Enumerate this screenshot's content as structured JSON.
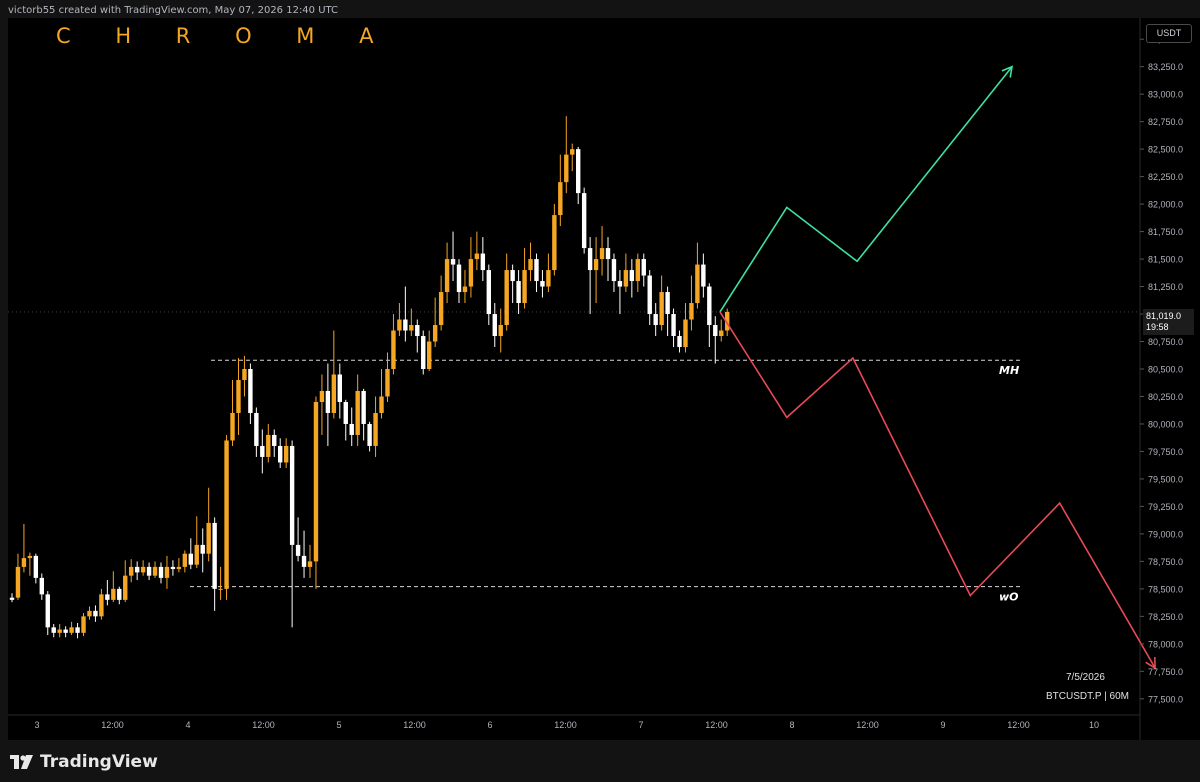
{
  "header": {
    "attribution": "victorb55 created with TradingView.com, May 07, 2026 12:40 UTC"
  },
  "brand": {
    "text": "C H R O M A"
  },
  "footer": {
    "logo_text": "TradingView"
  },
  "price_axis": {
    "currency": "USDT"
  },
  "last_price": {
    "value": "81,019.0",
    "countdown": "19:58"
  },
  "bottom_info": {
    "date": "7/5/2026",
    "symbol": "BTCUSDT.P | 60M"
  },
  "colors": {
    "bull": "#f5a623",
    "bear": "#ffffff",
    "up_path": "#3fe0a0",
    "down_path": "#e84a56",
    "background": "#000000"
  },
  "chart_data": {
    "type": "candlestick",
    "x_ticks": [
      "3",
      "12:00",
      "4",
      "12:00",
      "5",
      "12:00",
      "6",
      "12:00",
      "7",
      "12:00",
      "8",
      "12:00",
      "9",
      "12:00",
      "10"
    ],
    "y_ticks": [
      "83,500.0",
      "83,250.0",
      "83,000.0",
      "82,750.0",
      "82,500.0",
      "82,250.0",
      "82,000.0",
      "81,750.0",
      "81,500.0",
      "81,250.0",
      "81,000.0",
      "80,750.0",
      "80,500.0",
      "80,250.0",
      "80,000.0",
      "79,750.0",
      "79,500.0",
      "79,250.0",
      "79,000.0",
      "78,750.0",
      "78,500.0",
      "78,250.0",
      "78,000.0",
      "77,750.0",
      "77,500.0"
    ],
    "ylim": [
      77380,
      83620
    ],
    "candles": [
      {
        "o": 78420,
        "c": 78400,
        "h": 78460,
        "l": 78380
      },
      {
        "o": 78420,
        "c": 78700,
        "h": 78820,
        "l": 78400
      },
      {
        "o": 78700,
        "c": 78780,
        "h": 79090,
        "l": 78650
      },
      {
        "o": 78780,
        "c": 78800,
        "h": 78830,
        "l": 78620
      },
      {
        "o": 78800,
        "c": 78600,
        "h": 78820,
        "l": 78550
      },
      {
        "o": 78600,
        "c": 78450,
        "h": 78640,
        "l": 78400
      },
      {
        "o": 78450,
        "c": 78150,
        "h": 78480,
        "l": 78080
      },
      {
        "o": 78150,
        "c": 78100,
        "h": 78180,
        "l": 78060
      },
      {
        "o": 78100,
        "c": 78130,
        "h": 78180,
        "l": 78060
      },
      {
        "o": 78130,
        "c": 78100,
        "h": 78160,
        "l": 78060
      },
      {
        "o": 78100,
        "c": 78150,
        "h": 78200,
        "l": 78080
      },
      {
        "o": 78150,
        "c": 78100,
        "h": 78190,
        "l": 78050
      },
      {
        "o": 78100,
        "c": 78250,
        "h": 78280,
        "l": 78070
      },
      {
        "o": 78250,
        "c": 78300,
        "h": 78340,
        "l": 78220
      },
      {
        "o": 78300,
        "c": 78250,
        "h": 78350,
        "l": 78200
      },
      {
        "o": 78250,
        "c": 78450,
        "h": 78500,
        "l": 78220
      },
      {
        "o": 78450,
        "c": 78400,
        "h": 78580,
        "l": 78350
      },
      {
        "o": 78400,
        "c": 78500,
        "h": 78660,
        "l": 78380
      },
      {
        "o": 78500,
        "c": 78400,
        "h": 78520,
        "l": 78360
      },
      {
        "o": 78400,
        "c": 78620,
        "h": 78760,
        "l": 78380
      },
      {
        "o": 78620,
        "c": 78700,
        "h": 78770,
        "l": 78560
      },
      {
        "o": 78700,
        "c": 78650,
        "h": 78750,
        "l": 78580
      },
      {
        "o": 78650,
        "c": 78700,
        "h": 78760,
        "l": 78620
      },
      {
        "o": 78700,
        "c": 78620,
        "h": 78740,
        "l": 78580
      },
      {
        "o": 78620,
        "c": 78700,
        "h": 78750,
        "l": 78600
      },
      {
        "o": 78700,
        "c": 78600,
        "h": 78740,
        "l": 78550
      },
      {
        "o": 78600,
        "c": 78700,
        "h": 78800,
        "l": 78500
      },
      {
        "o": 78700,
        "c": 78680,
        "h": 78760,
        "l": 78620
      },
      {
        "o": 78680,
        "c": 78700,
        "h": 78780,
        "l": 78650
      },
      {
        "o": 78700,
        "c": 78820,
        "h": 78850,
        "l": 78650
      },
      {
        "o": 78820,
        "c": 78720,
        "h": 78960,
        "l": 78680
      },
      {
        "o": 78720,
        "c": 78900,
        "h": 79160,
        "l": 78690
      },
      {
        "o": 78900,
        "c": 78820,
        "h": 79050,
        "l": 78650
      },
      {
        "o": 78820,
        "c": 79100,
        "h": 79420,
        "l": 78750
      },
      {
        "o": 79100,
        "c": 78500,
        "h": 79150,
        "l": 78300
      },
      {
        "o": 78500,
        "c": 78500,
        "h": 78700,
        "l": 78400
      },
      {
        "o": 78500,
        "c": 79850,
        "h": 79900,
        "l": 78400
      },
      {
        "o": 79850,
        "c": 80100,
        "h": 80400,
        "l": 79800
      },
      {
        "o": 80100,
        "c": 80400,
        "h": 80600,
        "l": 79900
      },
      {
        "o": 80400,
        "c": 80500,
        "h": 80620,
        "l": 80250
      },
      {
        "o": 80500,
        "c": 80100,
        "h": 80550,
        "l": 80000
      },
      {
        "o": 80100,
        "c": 79800,
        "h": 80150,
        "l": 79700
      },
      {
        "o": 79800,
        "c": 79700,
        "h": 79950,
        "l": 79550
      },
      {
        "o": 79700,
        "c": 79900,
        "h": 80000,
        "l": 79650
      },
      {
        "o": 79900,
        "c": 79800,
        "h": 79950,
        "l": 79700
      },
      {
        "o": 79800,
        "c": 79650,
        "h": 79870,
        "l": 79600
      },
      {
        "o": 79650,
        "c": 79800,
        "h": 79870,
        "l": 79600
      },
      {
        "o": 79800,
        "c": 78900,
        "h": 79850,
        "l": 78150
      },
      {
        "o": 78900,
        "c": 78800,
        "h": 79150,
        "l": 78750
      },
      {
        "o": 78800,
        "c": 78700,
        "h": 79030,
        "l": 78600
      },
      {
        "o": 78700,
        "c": 78750,
        "h": 78900,
        "l": 78600
      },
      {
        "o": 78750,
        "c": 80200,
        "h": 80250,
        "l": 78500
      },
      {
        "o": 80200,
        "c": 80300,
        "h": 80450,
        "l": 79900
      },
      {
        "o": 80300,
        "c": 80100,
        "h": 80550,
        "l": 79800
      },
      {
        "o": 80100,
        "c": 80450,
        "h": 80850,
        "l": 80050
      },
      {
        "o": 80450,
        "c": 80200,
        "h": 80550,
        "l": 80050
      },
      {
        "o": 80200,
        "c": 80000,
        "h": 80220,
        "l": 79850
      },
      {
        "o": 80000,
        "c": 79900,
        "h": 80150,
        "l": 79800
      },
      {
        "o": 79900,
        "c": 80300,
        "h": 80450,
        "l": 79800
      },
      {
        "o": 80300,
        "c": 80000,
        "h": 80320,
        "l": 79850
      },
      {
        "o": 80000,
        "c": 79800,
        "h": 80020,
        "l": 79750
      },
      {
        "o": 79800,
        "c": 80100,
        "h": 80250,
        "l": 79700
      },
      {
        "o": 80100,
        "c": 80250,
        "h": 80500,
        "l": 80050
      },
      {
        "o": 80250,
        "c": 80500,
        "h": 80650,
        "l": 80200
      },
      {
        "o": 80500,
        "c": 80850,
        "h": 81000,
        "l": 80450
      },
      {
        "o": 80850,
        "c": 80950,
        "h": 81100,
        "l": 80800
      },
      {
        "o": 80950,
        "c": 80850,
        "h": 81250,
        "l": 80750
      },
      {
        "o": 80850,
        "c": 80900,
        "h": 81050,
        "l": 80800
      },
      {
        "o": 80900,
        "c": 80800,
        "h": 80950,
        "l": 80650
      },
      {
        "o": 80800,
        "c": 80500,
        "h": 80850,
        "l": 80450
      },
      {
        "o": 80500,
        "c": 80750,
        "h": 80850,
        "l": 80480
      },
      {
        "o": 80750,
        "c": 80900,
        "h": 81150,
        "l": 80700
      },
      {
        "o": 80900,
        "c": 81200,
        "h": 81350,
        "l": 80850
      },
      {
        "o": 81200,
        "c": 81500,
        "h": 81650,
        "l": 81100
      },
      {
        "o": 81500,
        "c": 81450,
        "h": 81750,
        "l": 81300
      },
      {
        "o": 81450,
        "c": 81200,
        "h": 81500,
        "l": 81100
      },
      {
        "o": 81200,
        "c": 81250,
        "h": 81400,
        "l": 81100
      },
      {
        "o": 81250,
        "c": 81500,
        "h": 81700,
        "l": 81150
      },
      {
        "o": 81500,
        "c": 81550,
        "h": 81750,
        "l": 81400
      },
      {
        "o": 81550,
        "c": 81400,
        "h": 81700,
        "l": 81300
      },
      {
        "o": 81400,
        "c": 81000,
        "h": 81450,
        "l": 80900
      },
      {
        "o": 81000,
        "c": 80800,
        "h": 81100,
        "l": 80700
      },
      {
        "o": 80800,
        "c": 80900,
        "h": 81050,
        "l": 80650
      },
      {
        "o": 80900,
        "c": 81400,
        "h": 81550,
        "l": 80850
      },
      {
        "o": 81400,
        "c": 81300,
        "h": 81450,
        "l": 81100
      },
      {
        "o": 81300,
        "c": 81100,
        "h": 81400,
        "l": 81000
      },
      {
        "o": 81100,
        "c": 81400,
        "h": 81600,
        "l": 81050
      },
      {
        "o": 81400,
        "c": 81500,
        "h": 81650,
        "l": 81300
      },
      {
        "o": 81500,
        "c": 81300,
        "h": 81550,
        "l": 81200
      },
      {
        "o": 81300,
        "c": 81250,
        "h": 81400,
        "l": 81150
      },
      {
        "o": 81250,
        "c": 81400,
        "h": 81550,
        "l": 81200
      },
      {
        "o": 81400,
        "c": 81900,
        "h": 82000,
        "l": 81350
      },
      {
        "o": 81900,
        "c": 82200,
        "h": 82450,
        "l": 81800
      },
      {
        "o": 82200,
        "c": 82450,
        "h": 82800,
        "l": 82100
      },
      {
        "o": 82450,
        "c": 82500,
        "h": 82550,
        "l": 82300
      },
      {
        "o": 82500,
        "c": 82100,
        "h": 82520,
        "l": 82000
      },
      {
        "o": 82100,
        "c": 81600,
        "h": 82150,
        "l": 81550
      },
      {
        "o": 81600,
        "c": 81400,
        "h": 81700,
        "l": 81000
      },
      {
        "o": 81400,
        "c": 81500,
        "h": 81700,
        "l": 81100
      },
      {
        "o": 81500,
        "c": 81600,
        "h": 81800,
        "l": 81350
      },
      {
        "o": 81600,
        "c": 81500,
        "h": 81700,
        "l": 81300
      },
      {
        "o": 81500,
        "c": 81300,
        "h": 81550,
        "l": 81200
      },
      {
        "o": 81300,
        "c": 81250,
        "h": 81400,
        "l": 81000
      },
      {
        "o": 81250,
        "c": 81400,
        "h": 81550,
        "l": 81200
      },
      {
        "o": 81400,
        "c": 81300,
        "h": 81500,
        "l": 81150
      },
      {
        "o": 81300,
        "c": 81500,
        "h": 81550,
        "l": 81200
      },
      {
        "o": 81500,
        "c": 81350,
        "h": 81550,
        "l": 81250
      },
      {
        "o": 81350,
        "c": 81000,
        "h": 81400,
        "l": 80900
      },
      {
        "o": 81000,
        "c": 80900,
        "h": 81100,
        "l": 80800
      },
      {
        "o": 80900,
        "c": 81200,
        "h": 81350,
        "l": 80850
      },
      {
        "o": 81200,
        "c": 81000,
        "h": 81250,
        "l": 80800
      },
      {
        "o": 81000,
        "c": 80800,
        "h": 81050,
        "l": 80700
      },
      {
        "o": 80800,
        "c": 80700,
        "h": 80850,
        "l": 80650
      },
      {
        "o": 80700,
        "c": 80950,
        "h": 81100,
        "l": 80650
      },
      {
        "o": 80950,
        "c": 81100,
        "h": 81350,
        "l": 80850
      },
      {
        "o": 81100,
        "c": 81450,
        "h": 81650,
        "l": 81050
      },
      {
        "o": 81450,
        "c": 81250,
        "h": 81550,
        "l": 81150
      },
      {
        "o": 81250,
        "c": 80900,
        "h": 81280,
        "l": 80700
      },
      {
        "o": 80900,
        "c": 80800,
        "h": 80980,
        "l": 80550
      },
      {
        "o": 80800,
        "c": 80850,
        "h": 80950,
        "l": 80750
      },
      {
        "o": 80850,
        "c": 81019,
        "h": 81050,
        "l": 80800
      }
    ],
    "levels": [
      {
        "label": "MH",
        "price": 80580
      },
      {
        "label": "wO",
        "price": 78520
      }
    ],
    "projections": {
      "up_path": [
        [
          0,
          81019
        ],
        [
          11.2,
          81970
        ],
        [
          23,
          81480
        ],
        [
          49,
          83250
        ]
      ],
      "down_path": [
        [
          0,
          81019
        ],
        [
          11.2,
          80060
        ],
        [
          22.3,
          80600
        ],
        [
          42,
          78440
        ],
        [
          57,
          79280
        ],
        [
          73,
          77780
        ]
      ]
    }
  }
}
